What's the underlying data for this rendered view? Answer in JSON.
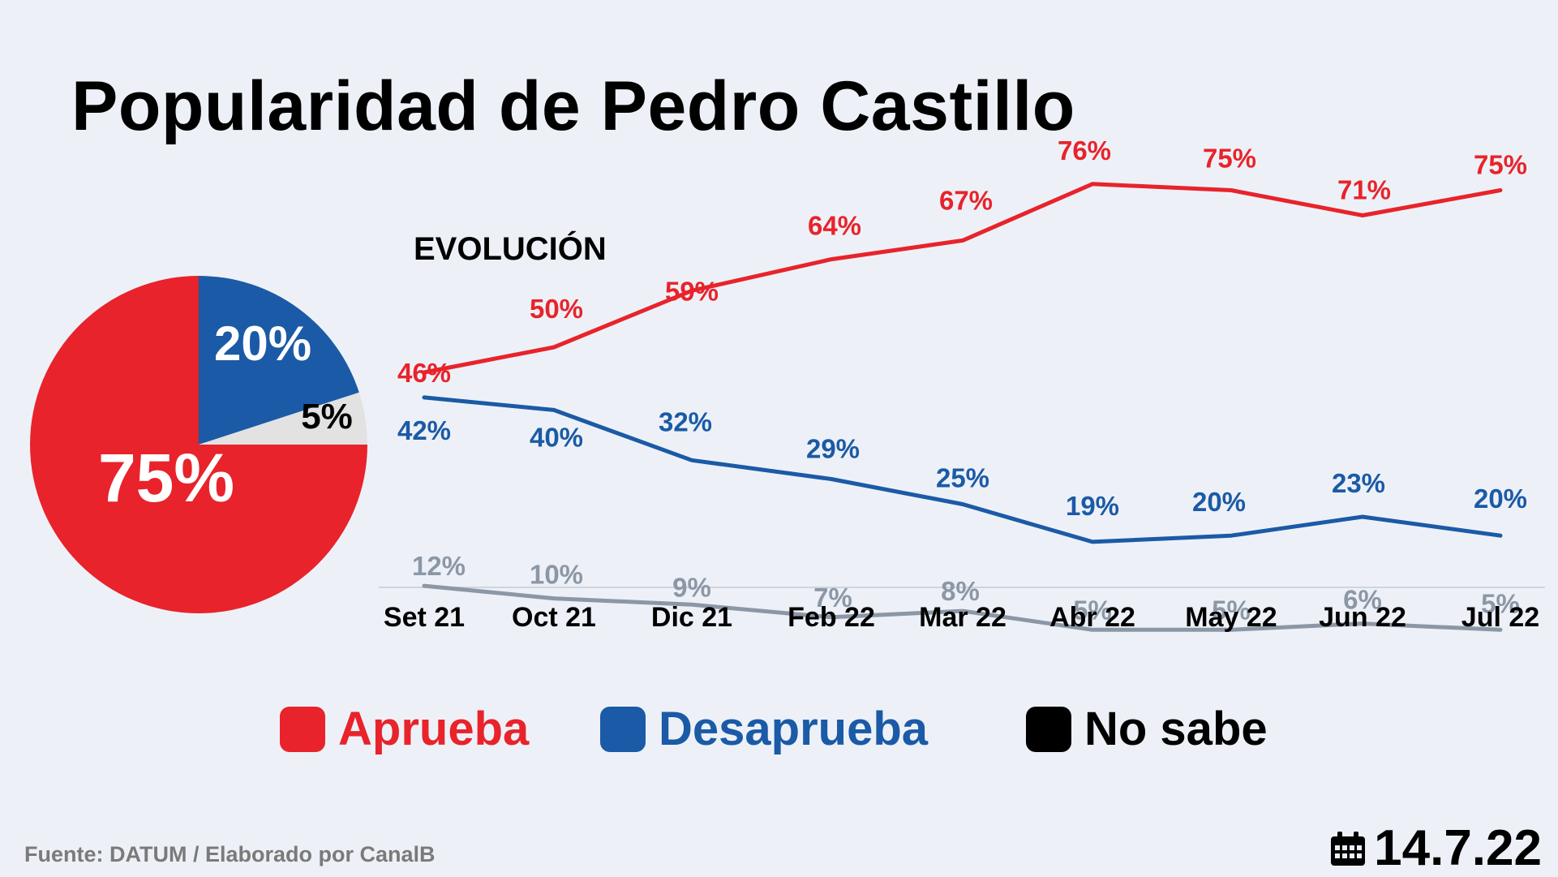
{
  "title": "Popularidad de Pedro Castillo",
  "colors": {
    "aprueba": "#e8232b",
    "desaprueba": "#1b5aa6",
    "no_sabe_line": "#8c97a6",
    "no_sabe_slice": "#e2e2e2",
    "no_sabe_swatch": "#000000"
  },
  "legend": {
    "aprueba": "Aprueba",
    "desaprueba": "Desaprueba",
    "no_sabe": "No sabe"
  },
  "footer": {
    "source": "Fuente: DATUM / Elaborado por CanalB",
    "date": "14.7.22",
    "date_icon": "calendar-icon"
  },
  "chart_data": [
    {
      "type": "pie",
      "slices": [
        {
          "name": "Aprueba",
          "value": 75,
          "label": "75%"
        },
        {
          "name": "Desaprueba",
          "value": 20,
          "label": "20%"
        },
        {
          "name": "No sabe",
          "value": 5,
          "label": "5%"
        }
      ]
    },
    {
      "type": "line",
      "title": "EVOLUCIÓN",
      "categories": [
        "Set 21",
        "Oct 21",
        "Dic 21",
        "Feb 22",
        "Mar 22",
        "Abr 22",
        "May 22",
        "Jun 22",
        "Jul 22"
      ],
      "series": [
        {
          "name": "Aprueba",
          "values": [
            46,
            50,
            59,
            64,
            67,
            76,
            75,
            71,
            75
          ],
          "labels": [
            "46%",
            "50%",
            "59%",
            "64%",
            "67%",
            "76%",
            "75%",
            "71%",
            "75%"
          ]
        },
        {
          "name": "Desaprueba",
          "values": [
            42,
            40,
            32,
            29,
            25,
            19,
            20,
            23,
            20
          ],
          "labels": [
            "42%",
            "40%",
            "32%",
            "29%",
            "25%",
            "19%",
            "20%",
            "23%",
            "20%"
          ]
        },
        {
          "name": "No sabe",
          "values": [
            12,
            10,
            9,
            7,
            8,
            5,
            5,
            6,
            5
          ],
          "labels": [
            "12%",
            "10%",
            "9%",
            "7%",
            "8%",
            "5%",
            "5%",
            "6%",
            "5%"
          ]
        }
      ],
      "grid": false,
      "legend_position": "bottom"
    }
  ]
}
